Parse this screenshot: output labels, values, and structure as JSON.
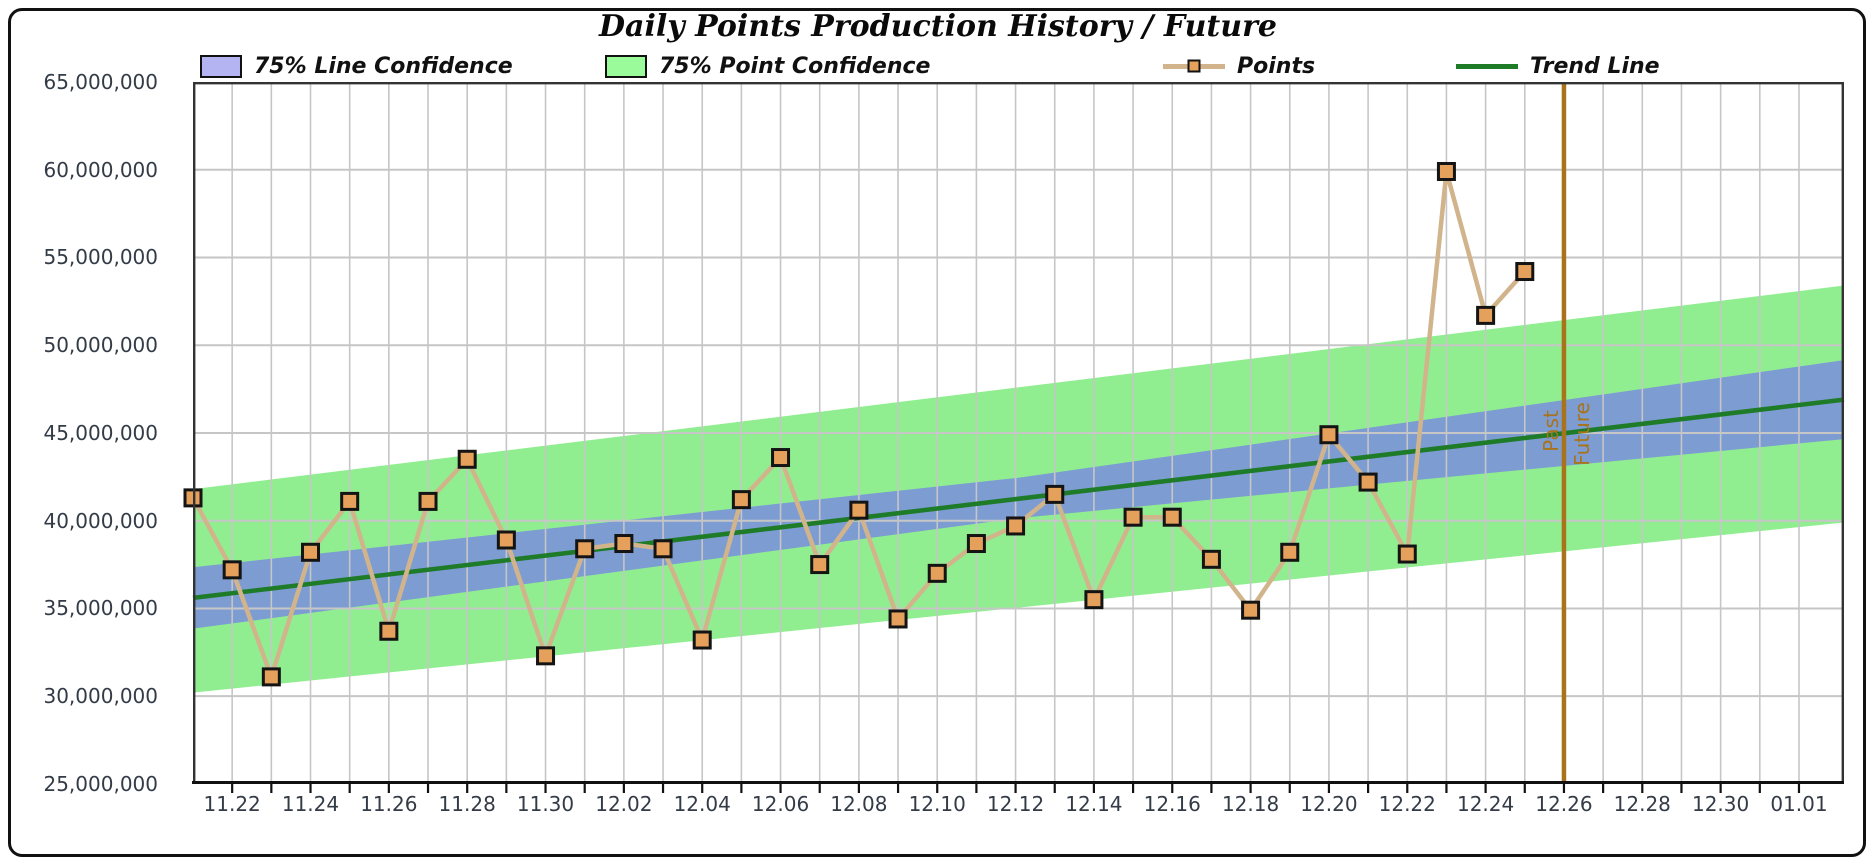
{
  "title": "Daily Points Production History / Future",
  "legend": {
    "items": [
      {
        "label": "75% Line Confidence",
        "swatch": "purple-box"
      },
      {
        "label": "75% Point Confidence",
        "swatch": "green-box"
      },
      {
        "label": "Points",
        "swatch": "point-marker-line"
      },
      {
        "label": "Trend Line",
        "swatch": "green-line"
      }
    ]
  },
  "colors": {
    "point_confidence_band": "#90EE90",
    "line_confidence_band": "#7D9CD2",
    "trend_line": "#1E7B28",
    "points_line": "#D2B48C",
    "points_marker_fill": "#E5A05C",
    "points_marker_border": "#141414",
    "divider_line": "#A8731A",
    "divider_text": "#A8731A",
    "legend_line_confidence_swatch": "#B4B4F2",
    "legend_point_confidence_swatch": "#9AFB9A",
    "gridline": "#C6C6C6",
    "plot_border": "#333333",
    "axis_text": "#333B47"
  },
  "chart_data": {
    "type": "line",
    "title": "Daily Points Production History / Future",
    "grid": true,
    "legend_position": "top",
    "y_axis_range": [
      25000000,
      65000000
    ],
    "y_tick_step": 5000000,
    "y_tick_labels": [
      "65,000,000",
      "60,000,000",
      "55,000,000",
      "50,000,000",
      "45,000,000",
      "40,000,000",
      "35,000,000",
      "30,000,000",
      "25,000,000"
    ],
    "x_tick_labels": [
      "11.22",
      "11.24",
      "11.26",
      "11.28",
      "11.30",
      "12.02",
      "12.04",
      "12.06",
      "12.08",
      "12.10",
      "12.12",
      "12.14",
      "12.16",
      "12.18",
      "12.20",
      "12.22",
      "12.24",
      "12.26",
      "12.28",
      "12.30",
      "01.01"
    ],
    "series": [
      {
        "name": "Points",
        "dates": [
          "11.21",
          "11.22",
          "11.23",
          "11.24",
          "11.25",
          "11.26",
          "11.27",
          "11.28",
          "11.29",
          "11.30",
          "12.01",
          "12.02",
          "12.03",
          "12.04",
          "12.05",
          "12.06",
          "12.07",
          "12.08",
          "12.09",
          "12.10",
          "12.11",
          "12.12",
          "12.13",
          "12.14",
          "12.15",
          "12.16",
          "12.17",
          "12.18",
          "12.19",
          "12.20",
          "12.21",
          "12.22",
          "12.23",
          "12.24",
          "12.25"
        ],
        "values": [
          41300000,
          37200000,
          31100000,
          38200000,
          41100000,
          33700000,
          41100000,
          43500000,
          38900000,
          32300000,
          38400000,
          38700000,
          38400000,
          33200000,
          41200000,
          43600000,
          37500000,
          40600000,
          34400000,
          37000000,
          38700000,
          39700000,
          41500000,
          35500000,
          40200000,
          40200000,
          37800000,
          34900000,
          38200000,
          44900000,
          42200000,
          38100000,
          59900000,
          51700000,
          54200000
        ]
      }
    ],
    "trend_line": {
      "name": "Trend Line",
      "start_value": 35600000,
      "end_value": 46900000
    },
    "bands": {
      "line_confidence": {
        "label": "75% Line Confidence",
        "left_top": 37350000,
        "left_bottom": 33850000,
        "mid_top": 42450000,
        "mid_bottom": 40150000,
        "right_top": 49150000,
        "right_bottom": 44650000
      },
      "point_confidence": {
        "label": "75% Point Confidence",
        "left_top": 41800000,
        "left_bottom": 30200000,
        "right_top": 53400000,
        "right_bottom": 39900000
      }
    },
    "divider": {
      "at": "12.26",
      "past_label": "Past",
      "future_label": "Future"
    }
  }
}
